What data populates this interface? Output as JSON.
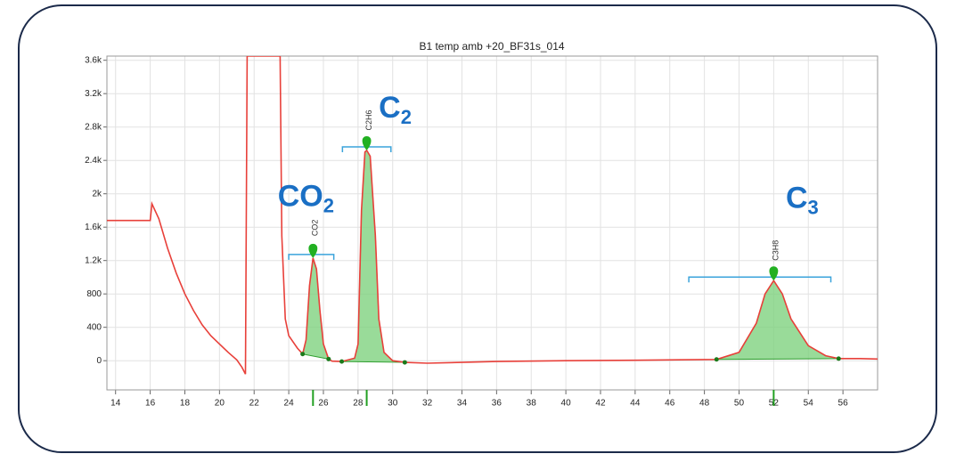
{
  "chart_data": {
    "type": "line",
    "title": "B1 temp amb +20_BF31s_014",
    "color": "#e8403a",
    "fill_color": "#7fd27f",
    "bracket_color": "#3aa3db",
    "label_color": "#1a6fc4",
    "grid": true,
    "xlim": [
      13.5,
      58
    ],
    "ylim": [
      -350,
      3650
    ],
    "xticks": [
      14,
      16,
      18,
      20,
      22,
      24,
      26,
      28,
      30,
      32,
      34,
      36,
      38,
      40,
      42,
      44,
      46,
      48,
      50,
      52,
      54,
      56
    ],
    "yticks": [
      0,
      400,
      800,
      {
        "value": 1200,
        "label": "1.2k"
      },
      {
        "value": 1600,
        "label": "1.6k"
      },
      {
        "value": 2000,
        "label": "2k"
      },
      {
        "value": 2400,
        "label": "2.4k"
      },
      {
        "value": 2800,
        "label": "2.8k"
      },
      {
        "value": 3200,
        "label": "3.2k"
      },
      {
        "value": 3600,
        "label": "3.6k"
      }
    ],
    "x": [
      13.5,
      16.0,
      16.1,
      16.5,
      17,
      17.5,
      18,
      18.5,
      19,
      19.5,
      20,
      20.5,
      21,
      21.3,
      21.5,
      21.6,
      23.5,
      23.6,
      23.8,
      24,
      24.5,
      24.8,
      25.0,
      25.2,
      25.4,
      25.6,
      25.8,
      26.0,
      26.3,
      26.5,
      27.06,
      27.8,
      28.0,
      28.2,
      28.4,
      28.5,
      28.7,
      29.0,
      29.2,
      29.5,
      30.0,
      30.7,
      32,
      36,
      40,
      44,
      48.7,
      50,
      51,
      51.5,
      52,
      52.5,
      53,
      54,
      55,
      55.75,
      57,
      58
    ],
    "values": [
      1680,
      1680,
      1880,
      1700,
      1350,
      1050,
      800,
      600,
      430,
      300,
      200,
      100,
      10,
      -80,
      -160,
      3650,
      3650,
      1500,
      500,
      300,
      150,
      80,
      250,
      900,
      1230,
      1100,
      600,
      200,
      20,
      -5,
      -10,
      30,
      200,
      1800,
      2500,
      2520,
      2450,
      1500,
      500,
      100,
      0,
      -20,
      -30,
      -10,
      0,
      5,
      15,
      100,
      450,
      800,
      960,
      800,
      500,
      180,
      60,
      25,
      25,
      20
    ],
    "peaks": [
      {
        "label": "CO2",
        "name": {
          "text": "CO",
          "sub": "2"
        },
        "x": 25.4,
        "height": 1230,
        "start_x": 24.8,
        "start_y": 80,
        "end_x": 26.3,
        "end_y": 20,
        "window": [
          24.0,
          26.6
        ]
      },
      {
        "label": "C2H6",
        "name": {
          "text": "C",
          "sub": "2"
        },
        "x": 28.5,
        "height": 2520,
        "start_x": 27.06,
        "start_y": -10,
        "end_x": 30.7,
        "end_y": -20,
        "window": [
          27.1,
          29.9
        ]
      },
      {
        "label": "C3H8",
        "name": {
          "text": "C",
          "sub": "3"
        },
        "x": 52,
        "height": 960,
        "start_x": 48.7,
        "start_y": 15,
        "end_x": 55.75,
        "end_y": 25,
        "window": [
          47.1,
          55.3
        ]
      }
    ]
  }
}
